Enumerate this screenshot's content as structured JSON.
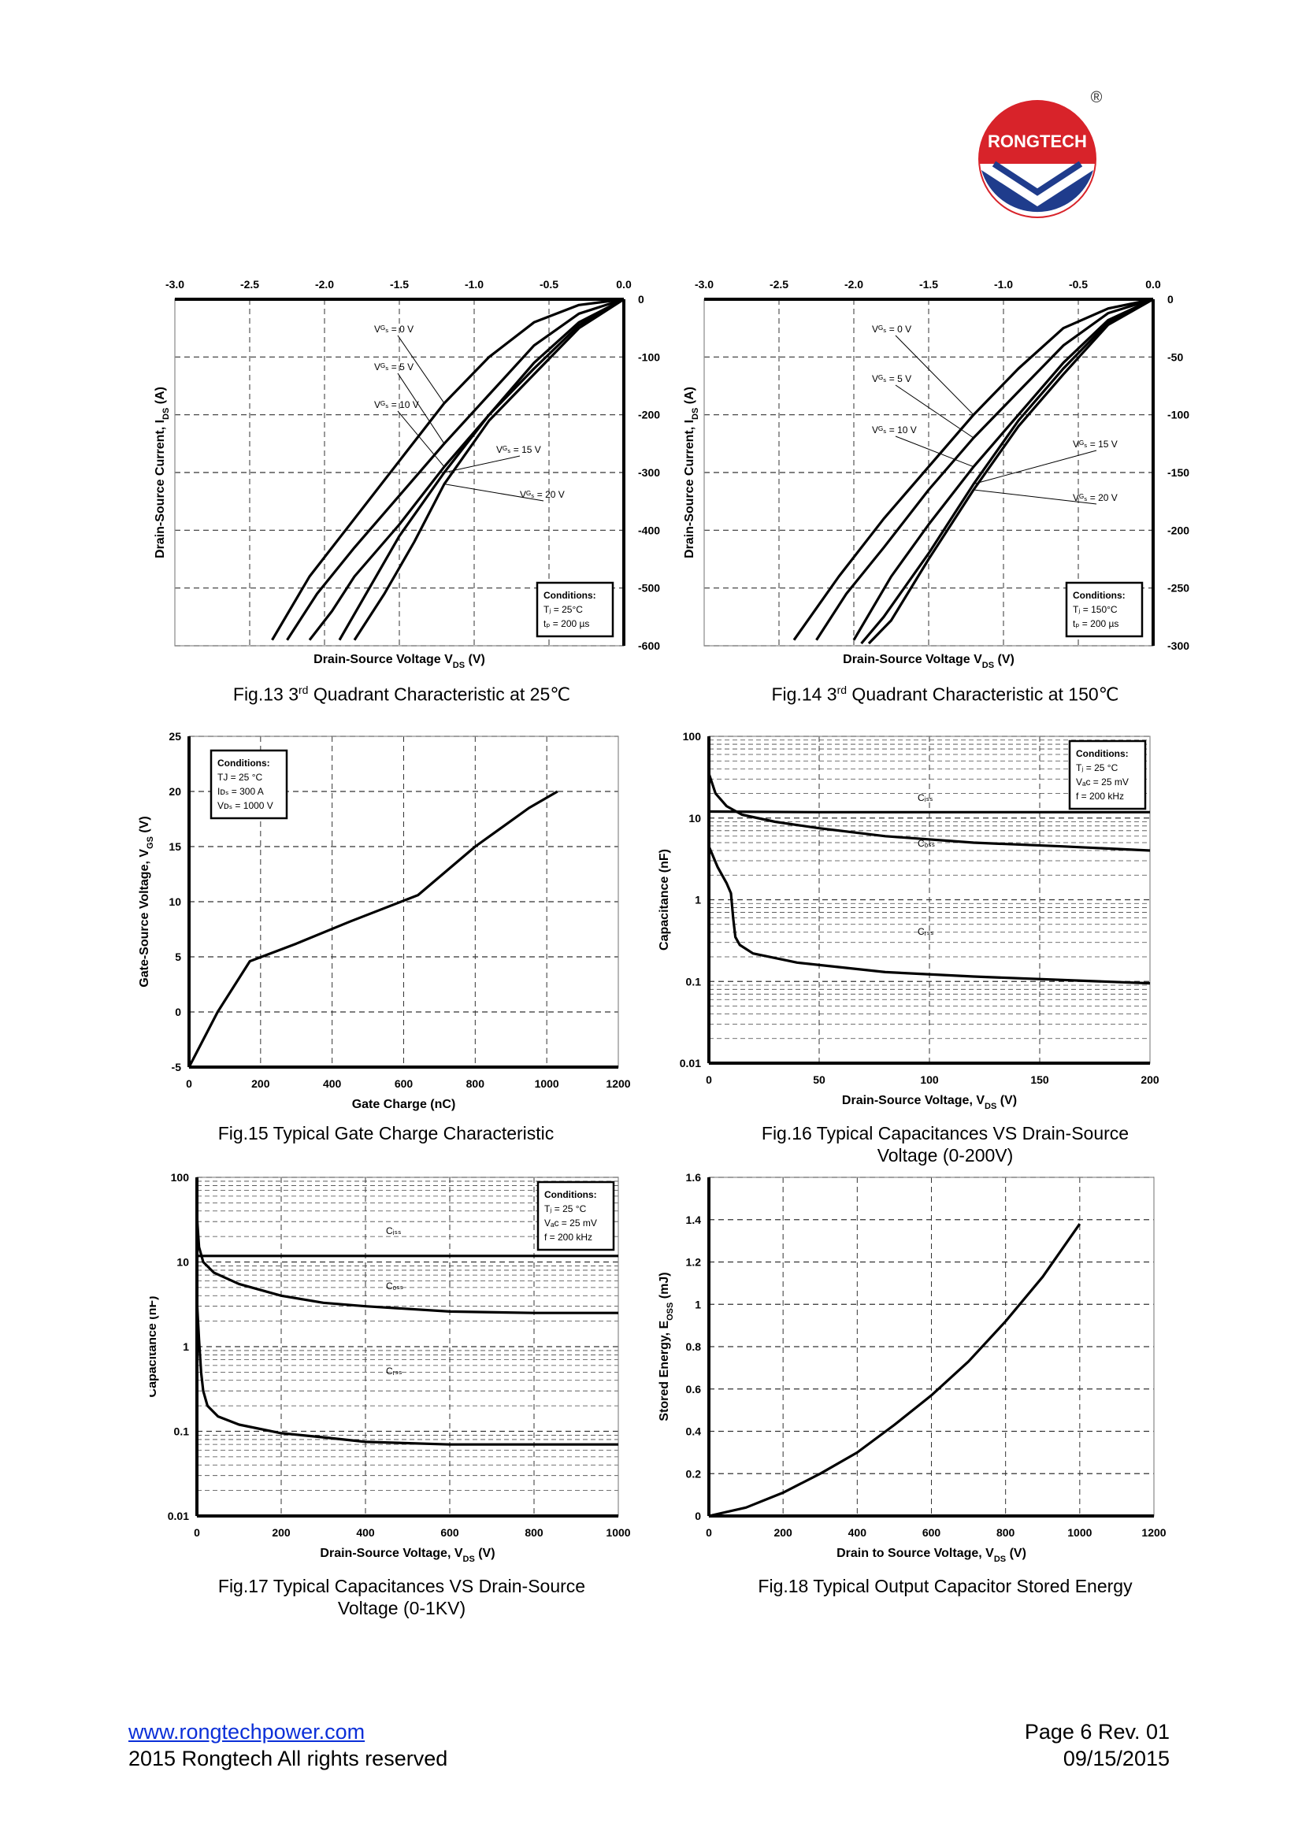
{
  "brand": {
    "name": "RONGTECH",
    "registered_mark": "®",
    "colors": {
      "red": "#d8232a",
      "blue": "#1f3c8c"
    }
  },
  "charts": [
    {
      "id": "fig13",
      "type": "line",
      "title": "Fig.13 3rd Quadrant Characteristic at 25℃",
      "caption_prefix": "Fig.13  3",
      "caption_sup": "rd",
      "caption_suffix": " Quadrant Characteristic at 25℃",
      "xlabel": "Drain-Source Voltage V",
      "xlabel_sub": "DS",
      "xlabel_unit": " (V)",
      "ylabel": "Drain-Source Current, I",
      "ylabel_sub": "DS",
      "ylabel_unit": " (A)",
      "xlim": [
        -3.0,
        0.0
      ],
      "ylim": [
        -600,
        0
      ],
      "x_axis_position": "top",
      "y_axis_position": "right",
      "xticks": [
        "-3.0",
        "-2.5",
        "-2.0",
        "-1.5",
        "-1.0",
        "-0.5",
        "0.0"
      ],
      "yticks": [
        "0",
        "-100",
        "-200",
        "-300",
        "-400",
        "-500",
        "-600"
      ],
      "conditions": [
        "Conditions:",
        "Tⱼ = 25°C",
        "tₚ = 200 µs"
      ],
      "series": [
        {
          "name": "VGS = 0 V",
          "x": [
            0,
            -0.3,
            -0.6,
            -0.9,
            -1.2,
            -1.5,
            -1.8,
            -2.1,
            -2.35
          ],
          "y": [
            0,
            -10,
            -40,
            -100,
            -180,
            -280,
            -380,
            -480,
            -590
          ]
        },
        {
          "name": "VGS = 5 V",
          "x": [
            0,
            -0.3,
            -0.6,
            -0.9,
            -1.2,
            -1.5,
            -1.8,
            -2.05,
            -2.25
          ],
          "y": [
            0,
            -25,
            -80,
            -165,
            -250,
            -340,
            -430,
            -510,
            -590
          ]
        },
        {
          "name": "VGS = 10 V",
          "x": [
            0,
            -0.3,
            -0.6,
            -0.9,
            -1.2,
            -1.5,
            -1.8,
            -1.95,
            -2.1
          ],
          "y": [
            0,
            -40,
            -110,
            -200,
            -290,
            -390,
            -480,
            -540,
            -590
          ]
        },
        {
          "name": "VGS = 15 V",
          "x": [
            0,
            -0.3,
            -0.6,
            -0.9,
            -1.2,
            -1.5,
            -1.7,
            -1.9
          ],
          "y": [
            0,
            -45,
            -120,
            -200,
            -300,
            -410,
            -500,
            -590
          ]
        },
        {
          "name": "VGS = 20 V",
          "x": [
            0,
            -0.3,
            -0.6,
            -0.9,
            -1.2,
            -1.4,
            -1.6,
            -1.8
          ],
          "y": [
            0,
            -50,
            -130,
            -210,
            -320,
            -420,
            -510,
            -590
          ]
        }
      ],
      "annotations": [
        "Vᴳₛ = 0 V",
        "Vᴳₛ = 5 V",
        "Vᴳₛ = 10 V",
        "Vᴳₛ = 15 V",
        "Vᴳₛ = 20 V"
      ]
    },
    {
      "id": "fig14",
      "type": "line",
      "title": "Fig.14 3rd Quadrant Characteristic at 150℃",
      "caption_prefix": "Fig.14  3",
      "caption_sup": "rd",
      "caption_suffix": " Quadrant Characteristic at 150℃",
      "xlabel": "Drain-Source Voltage V",
      "xlabel_sub": "DS",
      "xlabel_unit": " (V)",
      "ylabel": "Drain-Source Current, I",
      "ylabel_sub": "DS",
      "ylabel_unit": " (A)",
      "xlim": [
        -3.0,
        0.0
      ],
      "ylim": [
        -300,
        0
      ],
      "x_axis_position": "top",
      "y_axis_position": "right",
      "xticks": [
        "-3.0",
        "-2.5",
        "-2.0",
        "-1.5",
        "-1.0",
        "-0.5",
        "0.0"
      ],
      "yticks": [
        "0",
        "-50",
        "-100",
        "-150",
        "-200",
        "-250",
        "-300"
      ],
      "conditions": [
        "Conditions:",
        "Tⱼ = 150°C",
        "tₚ = 200 µs"
      ],
      "series": [
        {
          "name": "VGS = 0 V",
          "x": [
            0,
            -0.3,
            -0.6,
            -0.9,
            -1.2,
            -1.5,
            -1.8,
            -2.1,
            -2.4
          ],
          "y": [
            0,
            -8,
            -25,
            -60,
            -100,
            -145,
            -190,
            -240,
            -295
          ]
        },
        {
          "name": "VGS = 5 V",
          "x": [
            0,
            -0.3,
            -0.6,
            -0.9,
            -1.2,
            -1.5,
            -1.8,
            -2.05,
            -2.25
          ],
          "y": [
            0,
            -12,
            -40,
            -80,
            -120,
            -165,
            -215,
            -255,
            -295
          ]
        },
        {
          "name": "VGS = 10 V",
          "x": [
            0,
            -0.3,
            -0.6,
            -0.9,
            -1.2,
            -1.5,
            -1.75,
            -2.0
          ],
          "y": [
            0,
            -18,
            -55,
            -100,
            -145,
            -195,
            -240,
            -295
          ]
        },
        {
          "name": "VGS = 15 V",
          "x": [
            0,
            -0.3,
            -0.6,
            -0.9,
            -1.2,
            -1.5,
            -1.8,
            -1.95
          ],
          "y": [
            0,
            -20,
            -60,
            -105,
            -160,
            -220,
            -275,
            -298
          ]
        },
        {
          "name": "VGS = 20 V",
          "x": [
            0,
            -0.3,
            -0.6,
            -0.9,
            -1.2,
            -1.5,
            -1.75,
            -1.9
          ],
          "y": [
            0,
            -22,
            -65,
            -110,
            -165,
            -225,
            -278,
            -298
          ]
        }
      ],
      "annotations": [
        "Vᴳₛ = 0 V",
        "Vᴳₛ = 5 V",
        "Vᴳₛ = 10 V",
        "Vᴳₛ = 15 V",
        "Vᴳₛ = 20 V"
      ]
    },
    {
      "id": "fig15",
      "type": "line",
      "title": "Fig.15 Typical Gate Charge Characteristic",
      "caption_prefix": "Fig.15 Typical Gate Charge Characteristic",
      "xlabel": "Gate Charge (nC)",
      "ylabel": "Gate-Source Voltage, V",
      "ylabel_sub": "GS",
      "ylabel_unit": " (V)",
      "xlim": [
        0,
        1200
      ],
      "ylim": [
        -5,
        25
      ],
      "xticks": [
        "0",
        "200",
        "400",
        "600",
        "800",
        "1000",
        "1200"
      ],
      "yticks": [
        "-5",
        "0",
        "5",
        "10",
        "15",
        "20",
        "25"
      ],
      "conditions": [
        "Conditions:",
        "TJ = 25 °C",
        "Iᴅₛ = 300 A",
        "Vᴅₛ = 1000 V"
      ],
      "series": [
        {
          "name": "VGS",
          "x": [
            0,
            80,
            170,
            300,
            450,
            640,
            800,
            950,
            1030
          ],
          "y": [
            -5,
            0,
            4.6,
            6.2,
            8.2,
            10.6,
            15,
            18.5,
            20
          ]
        }
      ]
    },
    {
      "id": "fig16",
      "type": "line",
      "scale": "log",
      "title": "Fig.16 Typical Capacitances VS Drain-Source Voltage (0-200V)",
      "caption_prefix": "Fig.16 Typical Capacitances VS Drain-Source",
      "caption_line2": "Voltage (0-200V)",
      "xlabel": "Drain-Source Voltage, V",
      "xlabel_sub": "DS",
      "xlabel_unit": " (V)",
      "ylabel": "Capacitance (nF)",
      "xlim": [
        0,
        200
      ],
      "ylim": [
        0.01,
        100
      ],
      "xticks": [
        "0",
        "50",
        "100",
        "150",
        "200"
      ],
      "yticks": [
        "0.01",
        "0.1",
        "1",
        "10",
        "100"
      ],
      "conditions": [
        "Conditions:",
        "Tⱼ = 25 °C",
        "Vₐᴄ = 25 mV",
        "f = 200 kHz"
      ],
      "series": [
        {
          "name": "Ciss",
          "x": [
            0,
            50,
            100,
            150,
            200
          ],
          "y": [
            12,
            11.8,
            11.8,
            11.8,
            11.8
          ]
        },
        {
          "name": "Coss",
          "x": [
            0,
            3,
            8,
            15,
            30,
            50,
            80,
            120,
            160,
            200
          ],
          "y": [
            35,
            20,
            14,
            11,
            9,
            7.5,
            6,
            5,
            4.5,
            4
          ]
        },
        {
          "name": "Crss",
          "x": [
            0,
            4,
            8,
            10,
            11,
            12,
            14,
            20,
            40,
            80,
            120,
            200
          ],
          "y": [
            4.5,
            2.5,
            1.6,
            1.2,
            0.6,
            0.35,
            0.28,
            0.22,
            0.17,
            0.13,
            0.115,
            0.095
          ]
        }
      ],
      "series_labels": [
        "Cᵢₛₛ",
        "Cₒₛₛ",
        "Cᵣₛₛ"
      ]
    },
    {
      "id": "fig17",
      "type": "line",
      "scale": "log",
      "title": "Fig.17 Typical Capacitances VS Drain-Source Voltage (0-1KV)",
      "caption_prefix": "Fig.17 Typical Capacitances VS Drain-Source",
      "caption_line2": "Voltage (0-1KV)",
      "xlabel": "Drain-Source Voltage, V",
      "xlabel_sub": "DS",
      "xlabel_unit": " (V)",
      "ylabel": "Capacitance (nF)",
      "xlim": [
        0,
        1000
      ],
      "ylim": [
        0.01,
        100
      ],
      "xticks": [
        "0",
        "200",
        "400",
        "600",
        "800",
        "1000"
      ],
      "yticks": [
        "0.01",
        "0.1",
        "1",
        "10",
        "100"
      ],
      "conditions": [
        "Conditions:",
        "Tⱼ = 25 °C",
        "Vₐᴄ = 25 mV",
        "f = 200 kHz"
      ],
      "series": [
        {
          "name": "Ciss",
          "x": [
            0,
            500,
            1000
          ],
          "y": [
            11.8,
            11.8,
            11.8
          ]
        },
        {
          "name": "Coss",
          "x": [
            0,
            5,
            15,
            40,
            100,
            200,
            300,
            400,
            600,
            800,
            1000
          ],
          "y": [
            35,
            15,
            10,
            7.5,
            5.5,
            4,
            3.3,
            3,
            2.6,
            2.5,
            2.5
          ]
        },
        {
          "name": "Crss",
          "x": [
            0,
            5,
            10,
            15,
            25,
            50,
            100,
            200,
            300,
            400,
            600,
            800,
            1000
          ],
          "y": [
            3.5,
            1.2,
            0.5,
            0.3,
            0.2,
            0.15,
            0.12,
            0.095,
            0.085,
            0.075,
            0.07,
            0.07,
            0.07
          ]
        }
      ],
      "series_labels": [
        "Cᵢₛₛ",
        "Cₒₛₛ",
        "Cᵣₛₛ"
      ]
    },
    {
      "id": "fig18",
      "type": "line",
      "title": "Fig.18 Typical Output Capacitor Stored Energy",
      "caption_prefix": "Fig.18 Typical Output Capacitor Stored Energy",
      "xlabel": "Drain to Source Voltage, V",
      "xlabel_sub": "DS",
      "xlabel_unit": " (V)",
      "ylabel": "Stored Energy, E",
      "ylabel_sub": "OSS",
      "ylabel_unit": " (mJ)",
      "xlim": [
        0,
        1200
      ],
      "ylim": [
        0,
        1.6
      ],
      "xticks": [
        "0",
        "200",
        "400",
        "600",
        "800",
        "1000",
        "1200"
      ],
      "yticks": [
        "0",
        "0.2",
        "0.4",
        "0.6",
        "0.8",
        "1",
        "1.2",
        "1.4",
        "1.6"
      ],
      "series": [
        {
          "name": "Eoss",
          "x": [
            0,
            100,
            200,
            300,
            400,
            500,
            600,
            700,
            800,
            900,
            1000
          ],
          "y": [
            0,
            0.04,
            0.11,
            0.2,
            0.3,
            0.43,
            0.57,
            0.73,
            0.92,
            1.13,
            1.38
          ]
        }
      ]
    }
  ],
  "footer": {
    "url": "www.rongtechpower.com",
    "copyright": "2015 Rongtech All rights reserved",
    "page": "Page 6  Rev. 01",
    "date": "09/15/2015"
  }
}
